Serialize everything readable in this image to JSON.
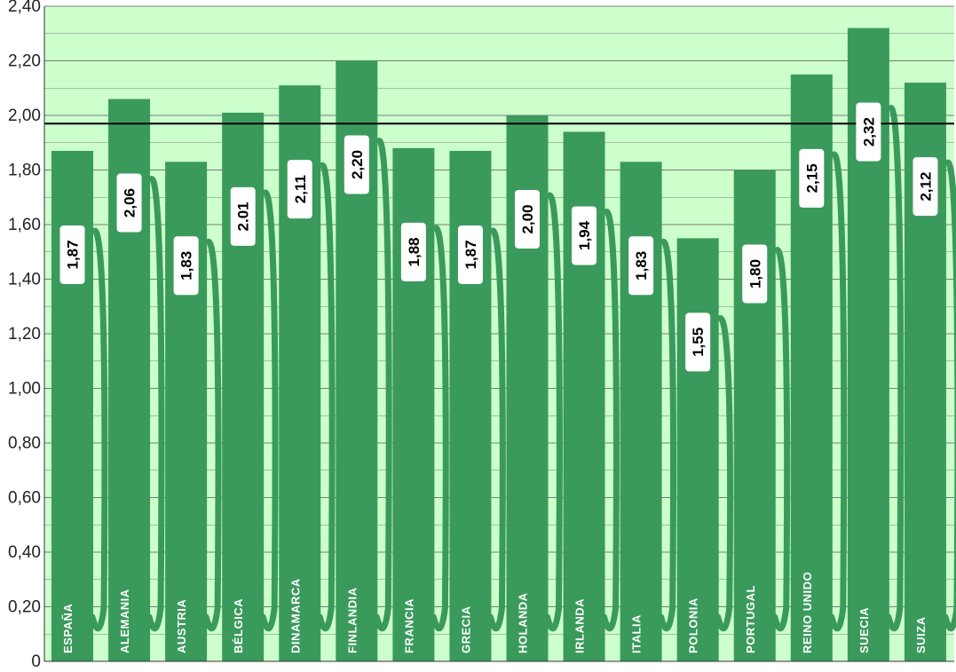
{
  "chart_data": {
    "type": "bar",
    "title": "",
    "xlabel": "",
    "ylabel": "",
    "ylim": [
      0,
      2.4
    ],
    "y_ticks": [
      "0",
      "0,20",
      "0,40",
      "0,60",
      "0,80",
      "1,00",
      "1,20",
      "1,40",
      "1,60",
      "1,80",
      "2,00",
      "2,20",
      "2,40"
    ],
    "categories": [
      "ESPAÑA",
      "ALEMANIA",
      "AUSTRIA",
      "BÉLGICA",
      "DINAMARCA",
      "FINLANDIA",
      "FRANCIA",
      "GRECIA",
      "HOLANDA",
      "IRLANDA",
      "ITALIA",
      "POLONIA",
      "PORTUGAL",
      "REINO UNIDO",
      "SUECIA",
      "SUIZA"
    ],
    "values": [
      1.87,
      2.06,
      1.83,
      2.01,
      2.11,
      2.2,
      1.88,
      1.87,
      2.0,
      1.94,
      1.83,
      1.55,
      1.8,
      2.15,
      2.32,
      2.12
    ],
    "value_labels": [
      "1,87",
      "2,06",
      "1,83",
      "2.01",
      "2,11",
      "2,20",
      "1,88",
      "1,87",
      "2,00",
      "1,94",
      "1,83",
      "1,55",
      "1,80",
      "2,15",
      "2,32",
      "2,12"
    ],
    "reference_line": 1.97,
    "grid": true,
    "legend": "none",
    "colors": {
      "plot_background": "#ccffcc",
      "bar": "#3a9a5b",
      "gridline": "#555555",
      "reference_line": "#000000",
      "label_box": "#ffffff",
      "category_text": "#ffffff"
    }
  }
}
